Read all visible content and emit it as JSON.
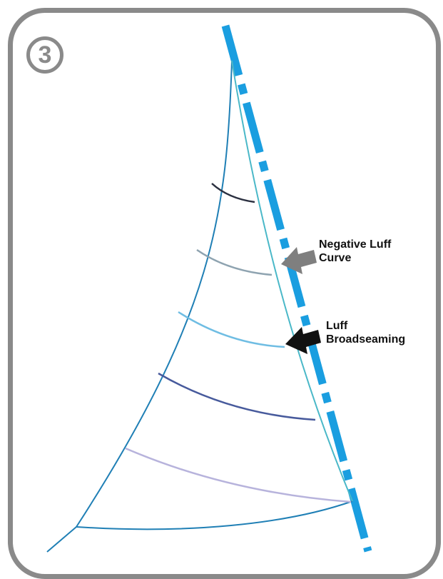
{
  "badge": {
    "number": "3"
  },
  "labels": {
    "negative_luff_curve_line1": "Negative Luff",
    "negative_luff_curve_line2": "Curve",
    "luff_broadseaming_line1": "Luff",
    "luff_broadseaming_line2": "Broadseaming"
  },
  "colors": {
    "frame": "#8a8a8a",
    "mast": "#1a9ee0",
    "sail_outline": "#1f7fb5",
    "luff_curve": "#4ab8c8",
    "gray_arrow": "#7f7f7f",
    "black_arrow": "#111111",
    "seam_1": "#2b3040",
    "seam_2": "#8ea3b0",
    "seam_3": "#6fbde3",
    "seam_4": "#475a9c",
    "seam_5": "#b7b3dc"
  }
}
